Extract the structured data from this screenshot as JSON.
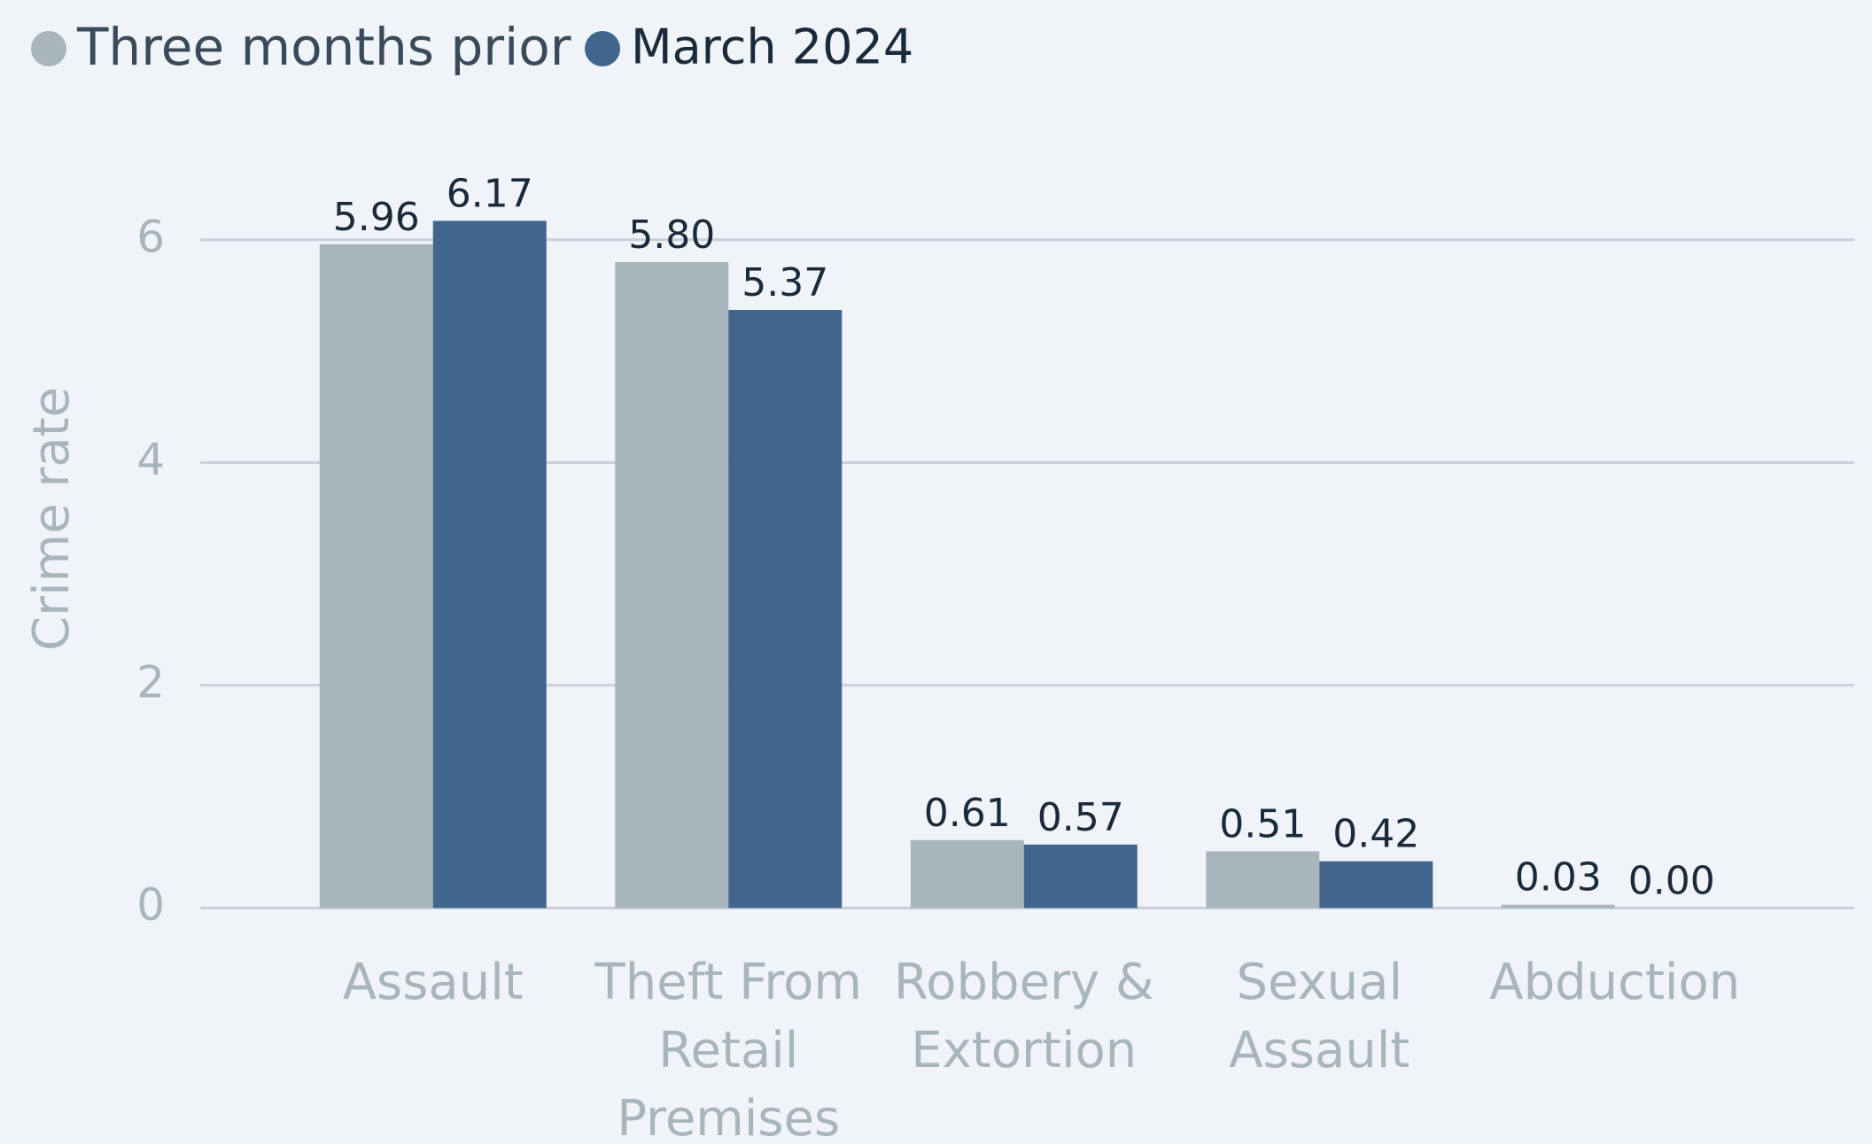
{
  "chart_data": {
    "type": "bar",
    "y_label": "Crime rate",
    "categories": [
      "Assault",
      "Theft From Retail Premises",
      "Robbery & Extortion",
      "Sexual Assault",
      "Abduction"
    ],
    "series": [
      {
        "name": "Three months prior",
        "color": "#a8b5bd",
        "values": [
          5.96,
          5.8,
          0.61,
          0.51,
          0.03
        ],
        "value_labels": [
          "5.96",
          "5.80",
          "0.61",
          "0.51",
          "0.03"
        ]
      },
      {
        "name": "March 2024",
        "color": "#41658d",
        "values": [
          6.17,
          5.37,
          0.57,
          0.42,
          0
        ],
        "value_labels": [
          "6.17",
          "5.37",
          "0.57",
          "0.42",
          "0.00"
        ]
      }
    ],
    "ylim": [
      0,
      7
    ],
    "yticks": [
      0,
      2,
      4,
      6
    ],
    "grid": true,
    "legend": "top-left"
  }
}
